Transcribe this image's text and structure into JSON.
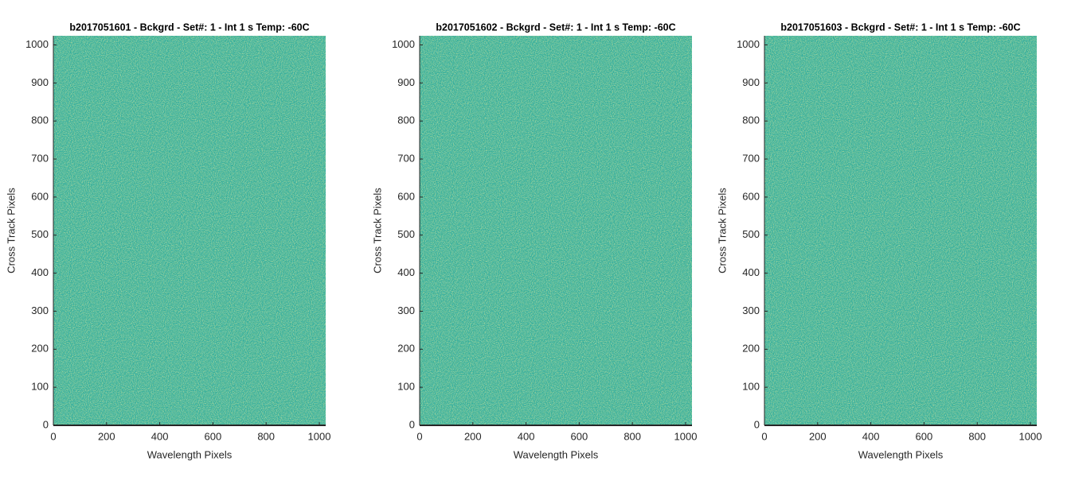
{
  "chart_data": [
    {
      "type": "image",
      "title": "b2017051601 - Bckgrd - Set#: 1 - Int 1 s Temp: -60C",
      "x_label": "Wavelength Pixels",
      "y_label": "Cross Track Pixels",
      "xlim": [
        0,
        1024
      ],
      "ylim": [
        0,
        1024
      ],
      "xticks": [
        0,
        200,
        400,
        600,
        800,
        1000
      ],
      "yticks": [
        0,
        100,
        200,
        300,
        400,
        500,
        600,
        700,
        800,
        900,
        1000
      ]
    },
    {
      "type": "image",
      "title": "b2017051602 - Bckgrd - Set#: 1 - Int 1 s Temp: -60C",
      "x_label": "Wavelength Pixels",
      "y_label": "Cross Track Pixels",
      "xlim": [
        0,
        1024
      ],
      "ylim": [
        0,
        1024
      ],
      "xticks": [
        0,
        200,
        400,
        600,
        800,
        1000
      ],
      "yticks": [
        0,
        100,
        200,
        300,
        400,
        500,
        600,
        700,
        800,
        900,
        1000
      ]
    },
    {
      "type": "image",
      "title": "b2017051603 - Bckgrd - Set#: 1 - Int 1 s Temp: -60C",
      "x_label": "Wavelength Pixels",
      "y_label": "Cross Track Pixels",
      "xlim": [
        0,
        1024
      ],
      "ylim": [
        0,
        1024
      ],
      "xticks": [
        0,
        200,
        400,
        600,
        800,
        1000
      ],
      "yticks": [
        0,
        100,
        200,
        300,
        400,
        500,
        600,
        700,
        800,
        900,
        1000
      ]
    }
  ]
}
